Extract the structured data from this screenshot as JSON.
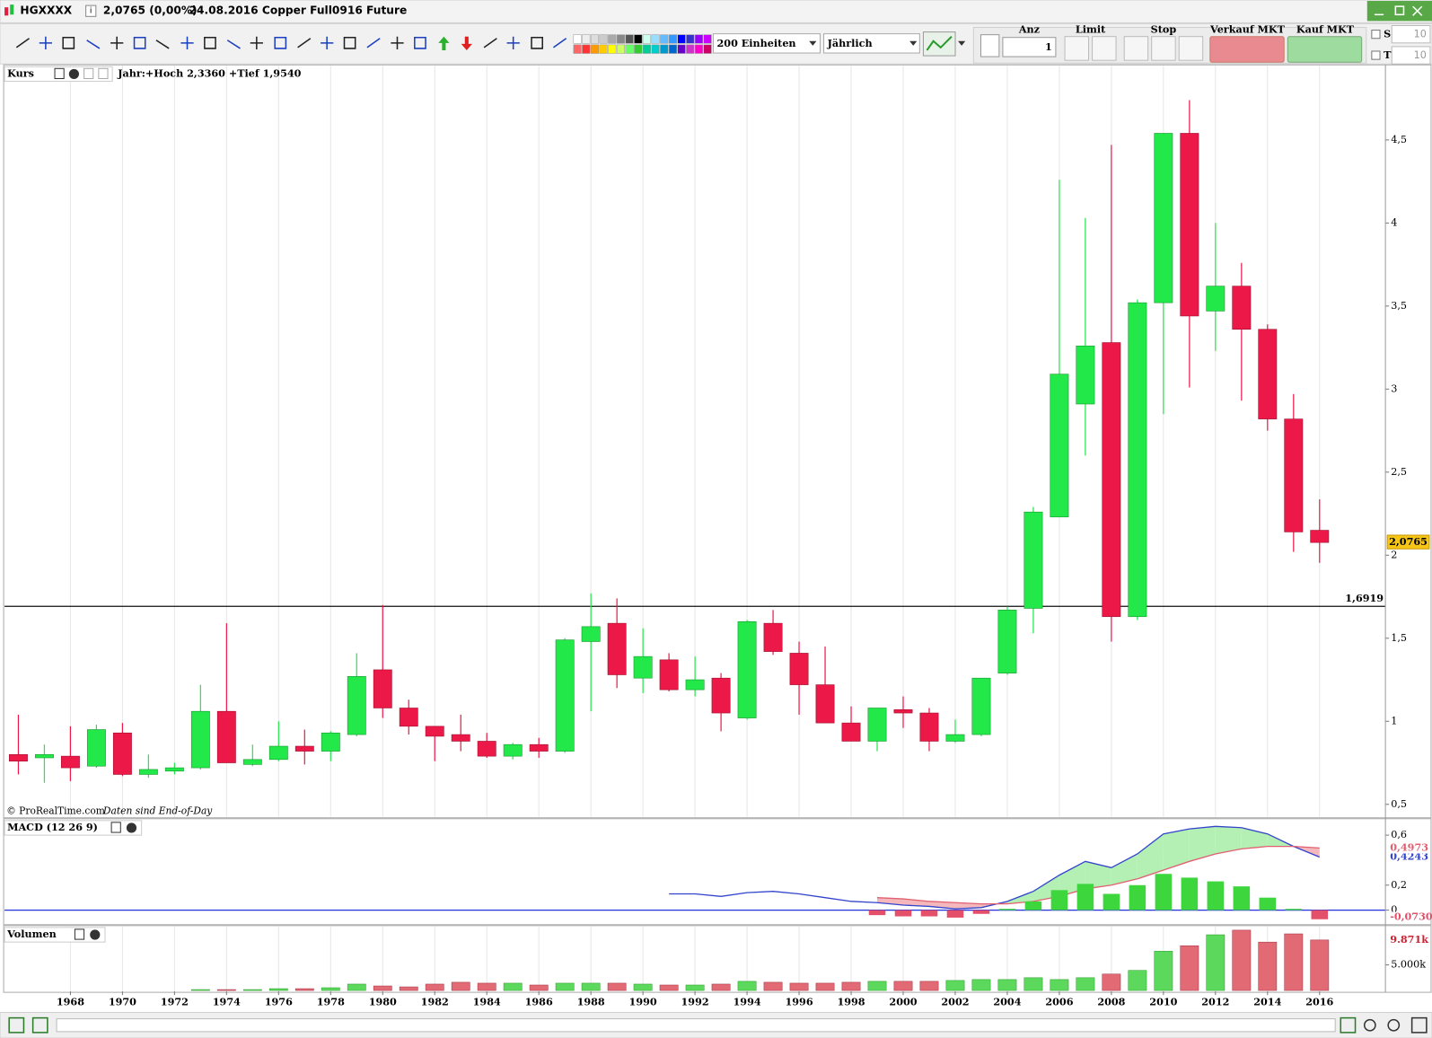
{
  "ui": {
    "symbol": "HGXXXX",
    "quote": "2,0765 (0,00%)",
    "description": "24.08.2016 Copper Full0916 Future",
    "units": "200 Einheiten",
    "period": "Jährlich",
    "anz": "Anz",
    "anz_value": "1",
    "limit": "Limit",
    "stop": "Stop",
    "sell": "Verkauf MKT",
    "buy": "Kauf MKT",
    "s": "S",
    "s_value": "10",
    "t": "T",
    "t_value": "10"
  },
  "chart_data": [
    {
      "type": "candlestick",
      "title": "Kurs",
      "subtitle": "Jahr:+Hoch 2,3360 +Tief 1,9540",
      "annotations": [
        "© ProRealTime.com",
        "Daten sind End-of-Day"
      ],
      "x": [
        1966,
        1967,
        1968,
        1969,
        1970,
        1971,
        1972,
        1973,
        1974,
        1975,
        1976,
        1977,
        1978,
        1979,
        1980,
        1981,
        1982,
        1983,
        1984,
        1985,
        1986,
        1987,
        1988,
        1989,
        1990,
        1991,
        1992,
        1993,
        1994,
        1995,
        1996,
        1997,
        1998,
        1999,
        2000,
        2001,
        2002,
        2003,
        2004,
        2005,
        2006,
        2007,
        2008,
        2009,
        2010,
        2011,
        2012,
        2013,
        2014,
        2015,
        2016
      ],
      "open": [
        0.8,
        0.78,
        0.79,
        0.73,
        0.93,
        0.68,
        0.7,
        0.72,
        1.06,
        0.74,
        0.77,
        0.85,
        0.82,
        0.92,
        1.31,
        1.08,
        0.97,
        0.92,
        0.88,
        0.79,
        0.86,
        0.82,
        1.48,
        1.59,
        1.26,
        1.37,
        1.19,
        1.26,
        1.02,
        1.59,
        1.41,
        1.22,
        0.99,
        0.88,
        1.07,
        1.05,
        0.88,
        0.92,
        1.29,
        1.68,
        2.23,
        2.91,
        3.28,
        1.63,
        3.52,
        4.54,
        3.47,
        3.62,
        3.36,
        2.82,
        2.15
      ],
      "high": [
        1.04,
        0.86,
        0.97,
        0.98,
        0.99,
        0.8,
        0.75,
        1.22,
        1.59,
        0.86,
        1.0,
        0.95,
        0.94,
        1.41,
        1.7,
        1.13,
        0.97,
        1.04,
        0.93,
        0.87,
        0.9,
        1.5,
        1.77,
        1.74,
        1.56,
        1.41,
        1.39,
        1.29,
        1.61,
        1.67,
        1.48,
        1.45,
        1.09,
        1.08,
        1.15,
        1.08,
        1.01,
        1.26,
        1.69,
        2.29,
        4.26,
        4.03,
        4.47,
        3.54,
        4.54,
        4.74,
        4.0,
        3.76,
        3.39,
        2.97,
        2.336
      ],
      "low": [
        0.68,
        0.63,
        0.64,
        0.72,
        0.67,
        0.66,
        0.68,
        0.71,
        0.75,
        0.73,
        0.76,
        0.74,
        0.76,
        0.91,
        1.02,
        0.92,
        0.76,
        0.82,
        0.78,
        0.77,
        0.78,
        0.81,
        1.06,
        1.2,
        1.17,
        1.18,
        1.15,
        0.94,
        1.01,
        1.4,
        1.04,
        0.99,
        0.88,
        0.82,
        0.96,
        0.82,
        0.87,
        0.91,
        1.28,
        1.53,
        2.23,
        2.6,
        1.48,
        1.61,
        2.85,
        3.01,
        3.23,
        2.93,
        2.75,
        2.02,
        1.954
      ],
      "close": [
        0.76,
        0.8,
        0.72,
        0.95,
        0.68,
        0.71,
        0.72,
        1.06,
        0.75,
        0.77,
        0.85,
        0.82,
        0.93,
        1.27,
        1.08,
        0.97,
        0.91,
        0.88,
        0.79,
        0.86,
        0.82,
        1.49,
        1.57,
        1.28,
        1.39,
        1.19,
        1.25,
        1.05,
        1.6,
        1.42,
        1.22,
        0.99,
        0.88,
        1.08,
        1.05,
        0.88,
        0.92,
        1.26,
        1.67,
        2.26,
        3.09,
        3.26,
        1.63,
        3.52,
        4.54,
        3.44,
        3.62,
        3.36,
        2.82,
        2.14,
        2.0765
      ],
      "last_label": "2,0765",
      "up_color": "#22e84a",
      "down_color": "#ec1848",
      "xlim": [
        1965.47,
        2018.53
      ],
      "xticks": [
        1968,
        1970,
        1972,
        1974,
        1976,
        1978,
        1980,
        1982,
        1984,
        1986,
        1988,
        1990,
        1992,
        1994,
        1996,
        1998,
        2000,
        2002,
        2004,
        2006,
        2008,
        2010,
        2012,
        2014,
        2016
      ],
      "ylim": [
        0.43,
        4.93
      ],
      "yticks": [
        {
          "value": 0.5,
          "label": "0,5"
        },
        1,
        {
          "value": 1.5,
          "label": "1,5"
        },
        2,
        {
          "value": 2.5,
          "label": "2,5"
        },
        3,
        {
          "value": 3.5,
          "label": "3,5"
        },
        4,
        {
          "value": 4.5,
          "label": "4,5"
        }
      ],
      "hline": {
        "value": 1.6919,
        "label": "1,6919"
      },
      "grid": "x"
    },
    {
      "type": "macd",
      "title": "MACD (12 26 9)",
      "x": [
        1991,
        1992,
        1993,
        1994,
        1995,
        1996,
        1997,
        1998,
        1999,
        2000,
        2001,
        2002,
        2003,
        2004,
        2005,
        2006,
        2007,
        2008,
        2009,
        2010,
        2011,
        2012,
        2013,
        2014,
        2015,
        2016
      ],
      "series": [
        {
          "style": "line",
          "color": "#3344cc",
          "values": [
            0.13,
            0.13,
            0.11,
            0.14,
            0.15,
            0.13,
            0.1,
            0.07,
            0.06,
            0.04,
            0.03,
            0.01,
            0.02,
            0.07,
            0.15,
            0.28,
            0.39,
            0.34,
            0.45,
            0.61,
            0.65,
            0.67,
            0.66,
            0.61,
            0.51,
            0.4243
          ],
          "last_label": "0,4243"
        },
        {
          "style": "line",
          "color": "#e06070",
          "values": [
            null,
            null,
            null,
            null,
            null,
            null,
            null,
            null,
            0.1,
            0.09,
            0.07,
            0.06,
            0.05,
            0.05,
            0.07,
            0.11,
            0.17,
            0.2,
            0.25,
            0.32,
            0.39,
            0.45,
            0.49,
            0.51,
            0.51,
            0.4973
          ],
          "last_label": "0,4973"
        },
        {
          "style": "bar",
          "color": "#3dd63d",
          "negative_color": "#e4506a",
          "values": [
            null,
            null,
            null,
            null,
            null,
            null,
            null,
            null,
            -0.04,
            -0.05,
            -0.05,
            -0.06,
            -0.03,
            0.01,
            0.07,
            0.16,
            0.21,
            0.13,
            0.2,
            0.29,
            0.26,
            0.23,
            0.19,
            0.1,
            0.01,
            -0.073
          ],
          "last_label": "-0,0730"
        }
      ],
      "fill_up": "#b4f0b4",
      "fill_down": "#f4b8bc",
      "zero_line_color": "#2233dd",
      "xlim": [
        1965.47,
        2018.53
      ],
      "ylim": [
        -0.102,
        0.717
      ],
      "yticks": [
        0,
        {
          "value": 0.2,
          "label": "0,2"
        },
        {
          "value": 0.6,
          "label": "0,6"
        }
      ]
    },
    {
      "type": "bar",
      "title": "Volumen",
      "x": [
        1973,
        1974,
        1975,
        1976,
        1977,
        1978,
        1979,
        1980,
        1981,
        1982,
        1983,
        1984,
        1985,
        1986,
        1987,
        1988,
        1989,
        1990,
        1991,
        1992,
        1993,
        1994,
        1995,
        1996,
        1997,
        1998,
        1999,
        2000,
        2001,
        2002,
        2003,
        2004,
        2005,
        2006,
        2007,
        2008,
        2009,
        2010,
        2011,
        2012,
        2013,
        2014,
        2015,
        2016
      ],
      "values": [
        180,
        180,
        180,
        360,
        360,
        540,
        1250,
        890,
        710,
        1250,
        1610,
        1430,
        1430,
        1070,
        1430,
        1430,
        1430,
        1250,
        1070,
        1070,
        1250,
        1790,
        1610,
        1430,
        1430,
        1610,
        1790,
        1790,
        1790,
        1960,
        2140,
        2140,
        2500,
        2140,
        2500,
        3210,
        3930,
        7680,
        8750,
        10890,
        11790,
        9460,
        11070,
        9871
      ],
      "last_label": "9.871k",
      "up_color": "#5cd85c",
      "down_color": "#e26a74",
      "xlim": [
        1965.47,
        2018.53
      ],
      "xticks": [
        1968,
        1970,
        1972,
        1974,
        1976,
        1978,
        1980,
        1982,
        1984,
        1986,
        1988,
        1990,
        1992,
        1994,
        1996,
        1998,
        2000,
        2002,
        2004,
        2006,
        2008,
        2010,
        2012,
        2014,
        2016
      ],
      "ylim": [
        0,
        12143
      ],
      "yticks": [
        {
          "value": 5000,
          "label": "5.000k"
        }
      ],
      "grid": "x"
    }
  ]
}
